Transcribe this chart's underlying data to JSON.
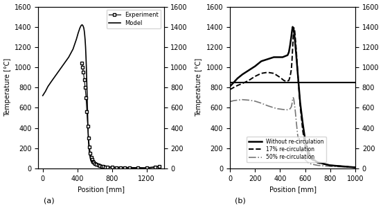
{
  "fig_width": 5.53,
  "fig_height": 3.0,
  "dpi": 100,
  "background_color": "#ffffff",
  "subplot_a": {
    "xlabel": "Position [mm]",
    "ylabel": "Temperature [°C]",
    "label": "(a)",
    "xlim": [
      -50,
      1400
    ],
    "ylim": [
      0,
      1600
    ],
    "xticks": [
      0,
      400,
      800,
      1200
    ],
    "yticks": [
      0,
      200,
      400,
      600,
      800,
      1000,
      1200,
      1400,
      1600
    ],
    "model_x": [
      0,
      30,
      60,
      100,
      150,
      200,
      250,
      300,
      350,
      390,
      410,
      430,
      445,
      455,
      462,
      468,
      474,
      480,
      485,
      490,
      495,
      500,
      505,
      510,
      515,
      520,
      525,
      530,
      540,
      555,
      570,
      600,
      650,
      700,
      800,
      1000,
      1200,
      1350
    ],
    "model_y": [
      720,
      760,
      810,
      860,
      920,
      980,
      1040,
      1100,
      1180,
      1280,
      1340,
      1390,
      1415,
      1420,
      1415,
      1405,
      1390,
      1360,
      1320,
      1270,
      1200,
      1100,
      980,
      820,
      650,
      480,
      340,
      250,
      150,
      80,
      55,
      35,
      25,
      18,
      12,
      8,
      5,
      20
    ],
    "exp_x": [
      450,
      460,
      470,
      480,
      490,
      500,
      510,
      520,
      530,
      540,
      550,
      560,
      570,
      580,
      590,
      600,
      620,
      640,
      660,
      680,
      700,
      720,
      750,
      800,
      850,
      900,
      950,
      1000,
      1100,
      1200,
      1300,
      1350
    ],
    "exp_y": [
      1040,
      1000,
      950,
      880,
      800,
      700,
      560,
      420,
      300,
      210,
      150,
      110,
      85,
      70,
      58,
      48,
      38,
      30,
      24,
      20,
      17,
      15,
      12,
      10,
      8,
      7,
      6,
      5,
      4,
      3,
      10,
      20
    ],
    "model_color": "#000000",
    "exp_color": "#000000",
    "model_lw": 1.2,
    "exp_lw": 0.8,
    "exp_marker": "s",
    "exp_markersize": 2.5,
    "legend_labels": [
      "Experiment",
      "Model"
    ]
  },
  "subplot_b": {
    "xlabel": "Position [mm]",
    "ylabel": "Temperature [°C]",
    "label": "(b)",
    "xlim": [
      0,
      1000
    ],
    "ylim": [
      0,
      1600
    ],
    "xticks": [
      0,
      200,
      400,
      600,
      800,
      1000
    ],
    "yticks": [
      0,
      200,
      400,
      600,
      800,
      1000,
      1200,
      1400,
      1600
    ],
    "hline_y": 850,
    "hline_color": "#000000",
    "hline_lw": 1.5,
    "line1_x": [
      0,
      30,
      60,
      100,
      150,
      200,
      250,
      300,
      350,
      400,
      420,
      440,
      460,
      470,
      480,
      490,
      495,
      500,
      505,
      510,
      515,
      520,
      530,
      540,
      560,
      580,
      600,
      620,
      650,
      700,
      800,
      900,
      1000
    ],
    "line1_y": [
      810,
      850,
      890,
      930,
      970,
      1010,
      1060,
      1080,
      1100,
      1100,
      1100,
      1110,
      1120,
      1150,
      1220,
      1310,
      1360,
      1400,
      1390,
      1360,
      1310,
      1240,
      1100,
      950,
      650,
      450,
      280,
      180,
      100,
      60,
      30,
      20,
      10
    ],
    "line2_x": [
      0,
      30,
      60,
      100,
      150,
      200,
      250,
      300,
      350,
      400,
      430,
      450,
      470,
      480,
      490,
      495,
      500,
      505,
      510,
      515,
      520,
      530,
      540,
      560,
      580,
      600,
      620,
      650,
      700,
      800,
      900,
      1000
    ],
    "line2_y": [
      780,
      800,
      820,
      840,
      870,
      910,
      940,
      950,
      940,
      900,
      870,
      860,
      870,
      910,
      980,
      1070,
      1190,
      1310,
      1390,
      1380,
      1310,
      1150,
      950,
      620,
      380,
      220,
      150,
      90,
      55,
      30,
      20,
      10
    ],
    "line3_x": [
      0,
      30,
      60,
      100,
      150,
      200,
      250,
      300,
      350,
      380,
      410,
      440,
      460,
      480,
      490,
      495,
      500,
      505,
      510,
      520,
      530,
      540,
      560,
      580,
      600,
      620,
      650,
      700,
      800,
      900,
      1000
    ],
    "line3_y": [
      660,
      670,
      675,
      680,
      675,
      665,
      645,
      620,
      600,
      590,
      585,
      580,
      580,
      590,
      610,
      640,
      680,
      700,
      680,
      580,
      450,
      330,
      200,
      130,
      85,
      60,
      42,
      30,
      20,
      15,
      10
    ],
    "line1_color": "#000000",
    "line2_color": "#000000",
    "line3_color": "#777777",
    "line1_lw": 1.8,
    "line2_lw": 1.4,
    "line3_lw": 1.2,
    "line1_style": "-",
    "line2_style": "--",
    "line3_style": "-.",
    "legend_labels": [
      "Without re-circulation",
      "17% re-circulation",
      "50% re-circulation"
    ]
  }
}
